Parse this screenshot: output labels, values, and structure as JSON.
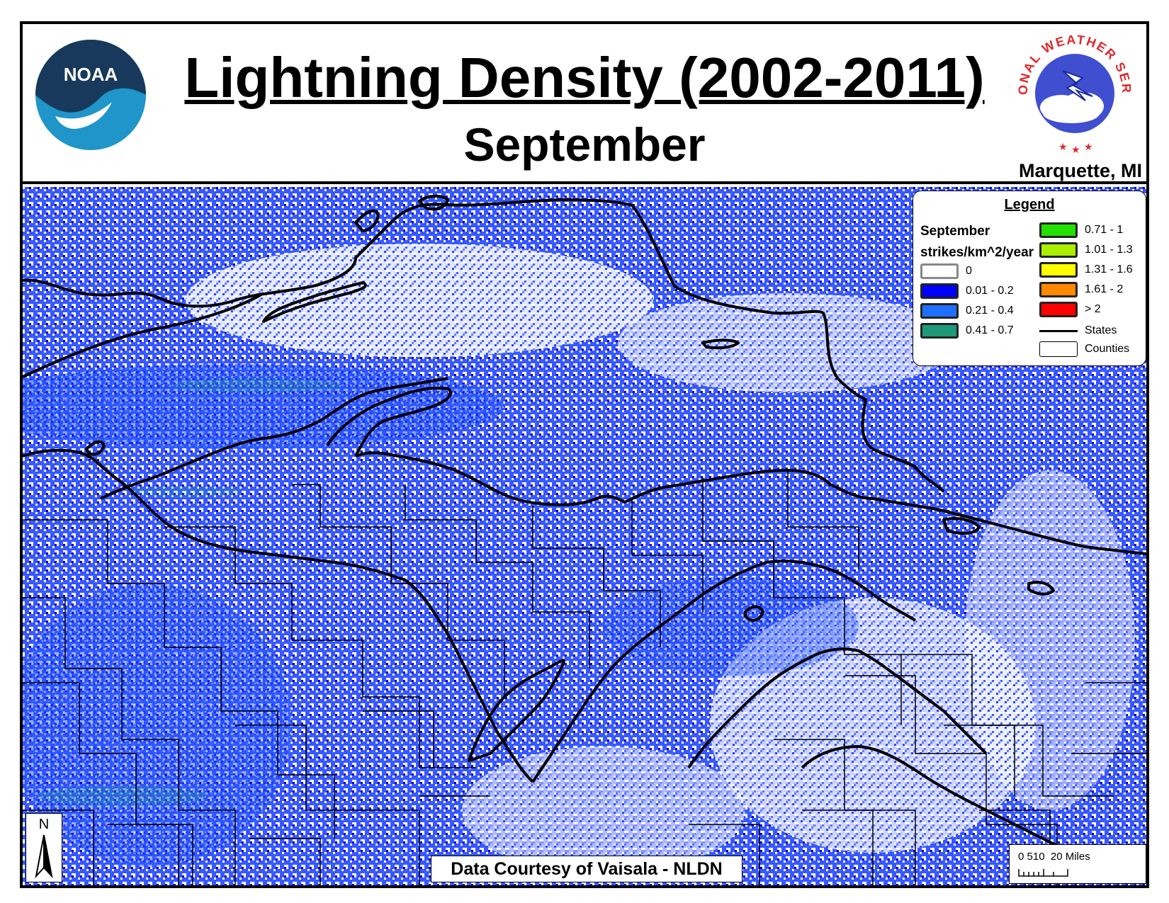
{
  "header": {
    "title": "Lightning Density (2002-2011)",
    "subtitle": "September",
    "office": "Marquette, MI",
    "noaa_logo_text": "NOAA",
    "nws_logo_text": "NATIONAL WEATHER SERVICE"
  },
  "legend": {
    "title": "Legend",
    "month": "September",
    "units": "strikes/km^2/year",
    "classes": [
      {
        "label": "0",
        "color": "#ffffff"
      },
      {
        "label": "0.01 - 0.2",
        "color": "#0000ff"
      },
      {
        "label": "0.21 - 0.4",
        "color": "#1e6fff"
      },
      {
        "label": "0.41 - 0.7",
        "color": "#1e9a78"
      },
      {
        "label": "0.71 - 1",
        "color": "#22e000"
      },
      {
        "label": "1.01 - 1.3",
        "color": "#aaee00"
      },
      {
        "label": "1.31 - 1.6",
        "color": "#ffff00"
      },
      {
        "label": "1.61 - 2",
        "color": "#ff8800"
      },
      {
        "label": "> 2",
        "color": "#ff0000"
      }
    ],
    "states_label": "States",
    "counties_label": "Counties"
  },
  "credit": "Data Courtesy of Vaisala - NLDN",
  "north_arrow": "N",
  "scale_bar": "0 510  20 Miles"
}
